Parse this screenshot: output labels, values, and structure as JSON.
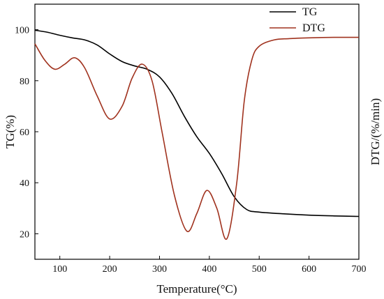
{
  "chart_data": {
    "type": "line",
    "title": "",
    "xlabel": "Temperature(°C)",
    "ylabel": "TG(%)",
    "y2label": "DTG/(%/min)",
    "xlim": [
      50,
      700
    ],
    "ylim": [
      10,
      110
    ],
    "x_ticks": [
      100,
      200,
      300,
      400,
      500,
      600,
      700
    ],
    "y_ticks": [
      20,
      40,
      60,
      80,
      100
    ],
    "grid": false,
    "legend_position": "top-right",
    "series": [
      {
        "name": "TG",
        "color": "#000000",
        "x": [
          50,
          75,
          100,
          125,
          150,
          175,
          200,
          225,
          250,
          275,
          300,
          325,
          350,
          375,
          400,
          425,
          450,
          475,
          500,
          550,
          600,
          650,
          700
        ],
        "y": [
          99.8,
          99.0,
          97.8,
          96.8,
          96.0,
          94.0,
          90.5,
          87.5,
          85.8,
          84.5,
          81.5,
          75.0,
          66.0,
          58.0,
          51.5,
          43.5,
          34.5,
          29.5,
          28.5,
          27.8,
          27.3,
          27.0,
          26.8
        ]
      },
      {
        "name": "DTG",
        "color": "#a0321e",
        "x": [
          50,
          70,
          90,
          110,
          130,
          150,
          175,
          200,
          225,
          245,
          265,
          285,
          305,
          330,
          355,
          375,
          395,
          415,
          435,
          455,
          470,
          485,
          500,
          530,
          560,
          600,
          650,
          700
        ],
        "y": [
          94.5,
          88.0,
          84.5,
          86.5,
          89.0,
          85.0,
          74.0,
          65.0,
          70.0,
          81.0,
          86.5,
          80.0,
          60.0,
          35.0,
          21.0,
          28.0,
          37.0,
          30.0,
          18.0,
          40.0,
          72.0,
          88.0,
          93.5,
          96.0,
          96.5,
          96.8,
          97.0,
          97.0
        ]
      }
    ]
  }
}
